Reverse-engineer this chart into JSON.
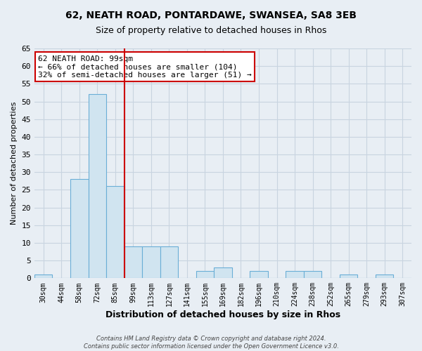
{
  "title1": "62, NEATH ROAD, PONTARDAWE, SWANSEA, SA8 3EB",
  "title2": "Size of property relative to detached houses in Rhos",
  "xlabel": "Distribution of detached houses by size in Rhos",
  "ylabel": "Number of detached properties",
  "bar_labels": [
    "30sqm",
    "44sqm",
    "58sqm",
    "72sqm",
    "85sqm",
    "99sqm",
    "113sqm",
    "127sqm",
    "141sqm",
    "155sqm",
    "169sqm",
    "182sqm",
    "196sqm",
    "210sqm",
    "224sqm",
    "238sqm",
    "252sqm",
    "265sqm",
    "279sqm",
    "293sqm",
    "307sqm"
  ],
  "bar_values": [
    1,
    0,
    28,
    52,
    26,
    9,
    9,
    9,
    0,
    2,
    3,
    0,
    2,
    0,
    2,
    2,
    0,
    1,
    0,
    1,
    0
  ],
  "bar_color": "#d0e4f0",
  "bar_edge_color": "#6aaed6",
  "highlight_line_color": "#cc0000",
  "annotation_title": "62 NEATH ROAD: 99sqm",
  "annotation_line1": "← 66% of detached houses are smaller (104)",
  "annotation_line2": "32% of semi-detached houses are larger (51) →",
  "annotation_box_color": "#ffffff",
  "annotation_box_edge": "#cc0000",
  "ylim": [
    0,
    65
  ],
  "yticks": [
    0,
    5,
    10,
    15,
    20,
    25,
    30,
    35,
    40,
    45,
    50,
    55,
    60,
    65
  ],
  "grid_color": "#c8d4e0",
  "footer1": "Contains HM Land Registry data © Crown copyright and database right 2024.",
  "footer2": "Contains public sector information licensed under the Open Government Licence v3.0.",
  "background_color": "#e8eef4"
}
